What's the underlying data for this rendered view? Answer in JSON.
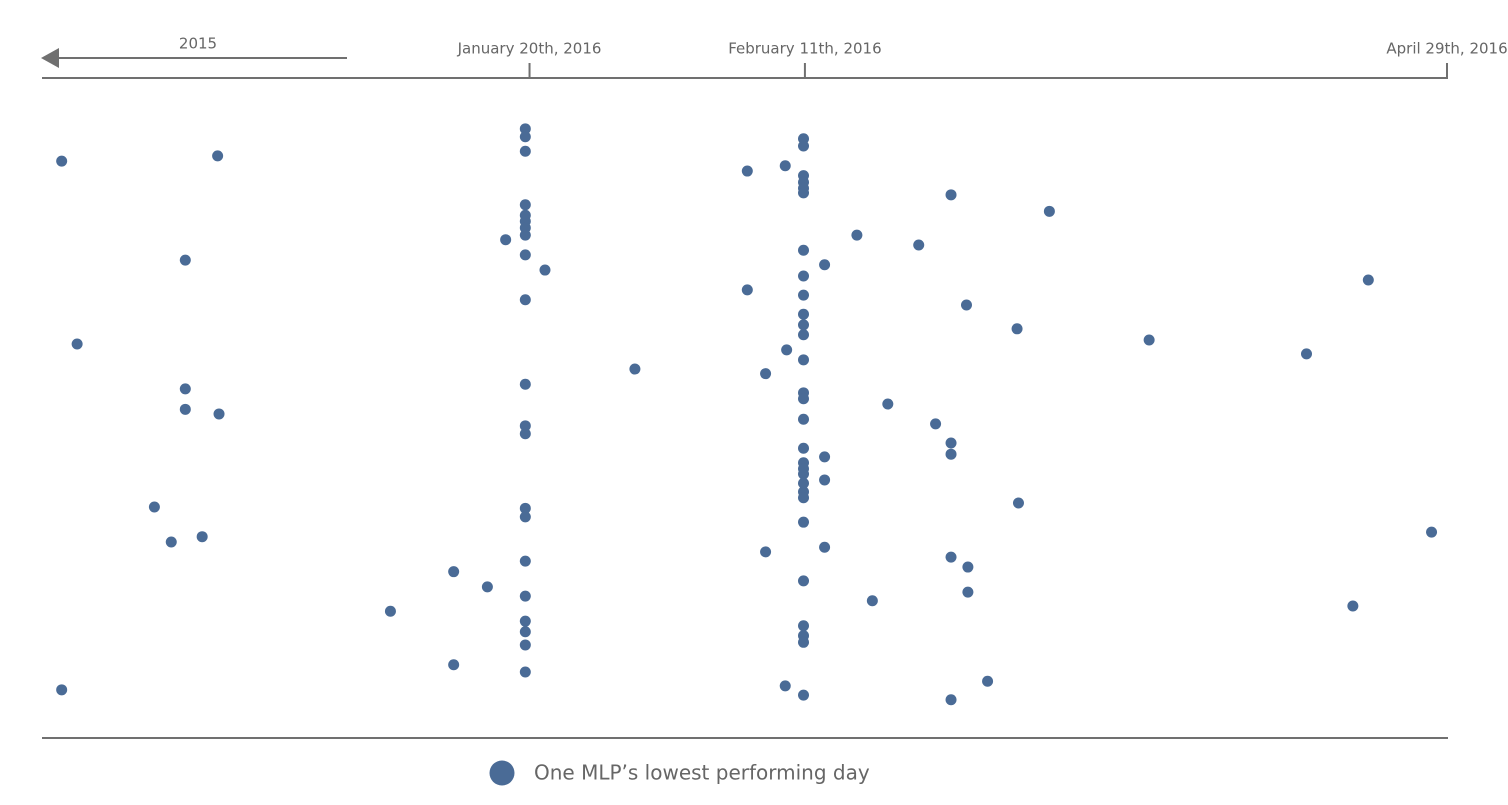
{
  "chart_data": {
    "type": "scatter",
    "annotation": "2015",
    "xlim": [
      0,
      100
    ],
    "ylim": [
      0,
      100
    ],
    "xticks": [
      {
        "value": 34.7,
        "label": "January 20th, 2016"
      },
      {
        "value": 54.3,
        "label": "February 11th, 2016"
      },
      {
        "value": 100,
        "label": "April 29th, 2016"
      }
    ],
    "series": [
      {
        "name": "One MLP’s lowest performing day",
        "color": "#4a6b96",
        "x": [
          1.4,
          12.5,
          10.2,
          2.5,
          10.2,
          10.2,
          12.6,
          8.0,
          9.2,
          11.4,
          1.4,
          34.4,
          34.4,
          34.4,
          34.4,
          34.4,
          34.4,
          34.4,
          34.4,
          33.0,
          34.4,
          35.8,
          34.4,
          42.2,
          34.4,
          34.4,
          34.4,
          34.4,
          34.4,
          34.4,
          29.3,
          31.7,
          34.4,
          24.8,
          34.4,
          34.4,
          34.4,
          29.3,
          34.4,
          54.2,
          54.2,
          52.9,
          50.2,
          54.2,
          54.2,
          54.2,
          54.2,
          64.7,
          71.7,
          58.0,
          62.4,
          54.2,
          55.7,
          54.2,
          94.4,
          50.2,
          54.2,
          65.8,
          54.2,
          54.2,
          69.4,
          54.2,
          78.8,
          53.0,
          90.0,
          54.2,
          51.5,
          54.2,
          54.2,
          60.2,
          54.2,
          63.6,
          64.7,
          54.2,
          64.7,
          55.7,
          54.2,
          54.2,
          54.2,
          55.7,
          54.2,
          54.2,
          54.2,
          69.5,
          54.2,
          98.9,
          55.7,
          51.5,
          64.7,
          65.9,
          54.2,
          65.9,
          59.1,
          93.3,
          54.2,
          54.2,
          54.2,
          67.3,
          52.9,
          54.2,
          64.7
        ],
        "values": [
          87.4,
          88.2,
          72.4,
          59.7,
          52.9,
          49.8,
          49.1,
          35.0,
          29.7,
          30.5,
          7.3,
          92.3,
          91.1,
          88.9,
          80.8,
          79.2,
          78.3,
          77.3,
          76.2,
          75.5,
          73.2,
          70.9,
          66.4,
          55.9,
          53.6,
          47.3,
          46.1,
          34.8,
          33.5,
          26.8,
          25.2,
          22.9,
          21.5,
          19.2,
          17.7,
          16.1,
          14.1,
          11.1,
          10.0,
          90.8,
          89.7,
          86.7,
          85.9,
          85.2,
          84.2,
          83.3,
          82.6,
          82.3,
          79.8,
          76.2,
          74.7,
          73.9,
          71.7,
          70.0,
          69.4,
          67.9,
          67.1,
          65.6,
          64.2,
          62.6,
          62.0,
          61.1,
          60.3,
          58.8,
          58.2,
          57.3,
          55.2,
          52.3,
          51.4,
          50.6,
          48.3,
          47.6,
          44.7,
          43.9,
          43.0,
          42.6,
          41.7,
          40.8,
          40.0,
          39.1,
          38.6,
          37.3,
          36.4,
          35.6,
          32.7,
          31.2,
          28.9,
          28.2,
          27.4,
          25.9,
          23.8,
          22.1,
          20.8,
          20.0,
          17.0,
          15.5,
          14.5,
          8.6,
          7.9,
          6.5,
          5.8
        ]
      }
    ]
  }
}
